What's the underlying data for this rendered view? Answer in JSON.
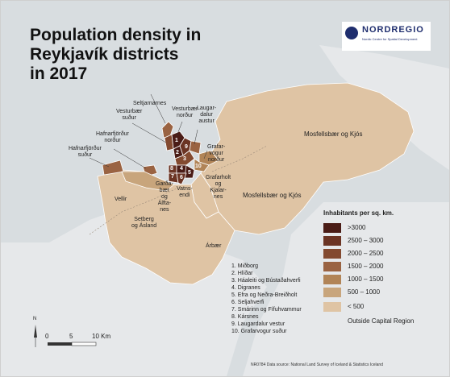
{
  "title_lines": [
    "Population density in",
    "Reykjavík districts",
    "in 2017"
  ],
  "logo": {
    "name": "NORDREGIO",
    "tagline": "Nordic Centre for Spatial Development"
  },
  "colors": {
    "sea": "#d8dde0",
    "outside": "#e6e8ea",
    "c_3000": "#4a1c16",
    "c_2500": "#6b3424",
    "c_2000": "#834a30",
    "c_1500": "#9a6342",
    "c_1000": "#b18457",
    "c_500": "#c8a57c",
    "c_0": "#dfc4a4"
  },
  "legend": {
    "title": "Inhabitants per sq. km.",
    "classes": [
      {
        "label": ">3000",
        "color": "#4a1c16"
      },
      {
        "label": "2500 – 3000",
        "color": "#6b3424"
      },
      {
        "label": "2000 – 2500",
        "color": "#834a30"
      },
      {
        "label": "1500 – 2000",
        "color": "#9a6342"
      },
      {
        "label": "1000 – 1500",
        "color": "#b18457"
      },
      {
        "label": "500 – 1000",
        "color": "#c8a57c"
      },
      {
        "label": "< 500",
        "color": "#dfc4a4"
      },
      {
        "label": "Outside Capital Region",
        "color": "#e6e8ea"
      }
    ]
  },
  "district_list": [
    "1. Miðborg",
    "2. Hlíðar",
    "3. Háaleiti og Bústaðahverfi",
    "4. Digranes",
    "5. Efra og Neðra-Breiðholt",
    "6. Seljahverfi",
    "7. Smárinn og Fífuhvammur",
    "8. Kársnes",
    "9. Laugardalur vestur",
    "10. Grafarvogur suður"
  ],
  "map_labels": {
    "seltjarnarnes": "Seltjarnarnes",
    "vesturbaer_sudur": [
      "Vesturbær",
      "suður"
    ],
    "vesturbaer_nordur": [
      "Vesturbær",
      "norður"
    ],
    "laugardalur_austur": [
      "Laugar-",
      "dalur",
      "austur"
    ],
    "hafnarfj_nordur": [
      "Hafnarfjörður",
      "norður"
    ],
    "hafnarfj_sudur": [
      "Hafnarfjörður",
      "suður"
    ],
    "grafarvogur_nordur": [
      "Grafar-",
      "vogur",
      "norður"
    ],
    "mosfellsbaer_1": "Mosfellsbær og Kjós",
    "mosfellsbaer_2": "Mosfellsbær og Kjós",
    "gardabaer": [
      "Garða-",
      "bær",
      "og",
      "Álfta-",
      "nes"
    ],
    "vatnsendi": [
      "Vatns-",
      "endi"
    ],
    "grafarholt": [
      "Grafarholt",
      "og",
      "Kjalar-",
      "nes"
    ],
    "vellir": "Vellir",
    "setberg": [
      "Setberg",
      "og Ásland"
    ],
    "arbaer": "Árbær"
  },
  "district_numbers": [
    "1",
    "2",
    "3",
    "4",
    "5",
    "6",
    "7",
    "8",
    "9",
    "10"
  ],
  "scale": {
    "labels": [
      "0",
      "5",
      "10 Km"
    ],
    "north": "N"
  },
  "credit": "NR0784  Data source: National Land Survey of Iceland & Statistics Iceland"
}
